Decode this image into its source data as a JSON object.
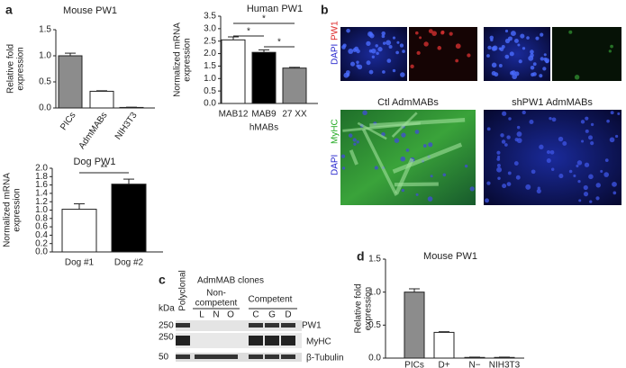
{
  "chart_data": [
    {
      "type": "bar",
      "title": "Mouse PW1",
      "ylabel": [
        "Relative fold",
        "expression"
      ],
      "categories": [
        "PICs",
        "AdmMABs",
        "NIH3T3"
      ],
      "values": [
        1.0,
        0.32,
        0.01
      ],
      "errors": [
        0.05,
        0.01,
        0.005
      ],
      "colors": [
        "#8c8c8c",
        "#ffffff",
        "#ffffff"
      ],
      "ylim": [
        0,
        1.5
      ],
      "yticks": [
        {
          "value": 0,
          "label": "0.0"
        },
        0.5,
        {
          "value": 1,
          "label": "1.0"
        },
        1.5
      ]
    },
    {
      "type": "bar",
      "title": "Human PW1",
      "ylabel": [
        "Normalized mRNA",
        "expression"
      ],
      "xlabel": "hMABs",
      "categories": [
        "MAB12",
        "MAB9",
        "27 XX"
      ],
      "values": [
        2.55,
        2.05,
        1.42
      ],
      "errors": [
        0.12,
        0.1,
        0.03
      ],
      "colors": [
        "#ffffff",
        "#000000",
        "#8c8c8c"
      ],
      "annotations": [
        "*",
        "*",
        "*"
      ],
      "ylim": [
        0,
        3.5
      ],
      "yticks": [
        {
          "value": 0,
          "label": "0.0"
        },
        0.5,
        {
          "value": 1,
          "label": "1.0"
        },
        1.5,
        {
          "value": 2,
          "label": "2.0"
        },
        2.5,
        {
          "value": 3,
          "label": "3.0"
        },
        3.5
      ]
    },
    {
      "type": "bar",
      "title": "Dog PW1",
      "ylabel": [
        "Normalized mRNA",
        "expression"
      ],
      "categories": [
        "Dog #1",
        "Dog #2"
      ],
      "values": [
        1.02,
        1.62
      ],
      "errors": [
        0.13,
        0.12
      ],
      "colors": [
        "#ffffff",
        "#000000"
      ],
      "annotations": [
        "**"
      ],
      "ylim": [
        0,
        2.0
      ],
      "yticks": [
        {
          "value": 0,
          "label": "0.0"
        },
        0.2,
        0.4,
        0.6,
        0.8,
        {
          "value": 1,
          "label": "1.0"
        },
        1.2,
        1.4,
        1.6,
        1.8,
        {
          "value": 2,
          "label": "2.0"
        }
      ]
    },
    {
      "type": "bar",
      "title": "Mouse PW1",
      "ylabel": [
        "Relative fold",
        "expression"
      ],
      "categories": [
        "PICs",
        "D+",
        "N−",
        "NIH3T3"
      ],
      "values": [
        1.0,
        0.39,
        0.01,
        0.01
      ],
      "errors": [
        0.05,
        0.01,
        0.005,
        0.005
      ],
      "colors": [
        "#8c8c8c",
        "#ffffff",
        "#ffffff",
        "#ffffff"
      ],
      "ylim": [
        0,
        1.5
      ],
      "yticks": [
        {
          "value": 0,
          "label": "0.0"
        },
        0.5,
        {
          "value": 1,
          "label": "1.0"
        },
        1.5
      ]
    }
  ],
  "figure": {
    "panel_labels": [
      "a",
      "b",
      "c",
      "d"
    ],
    "microscopy": {
      "row1_label": [
        "PW1",
        "DAPI"
      ],
      "row2_label": [
        "MyHC",
        "DAPI"
      ],
      "panel_titles": [
        "Ctl AdmMABs",
        "shPW1 AdmMABs"
      ]
    },
    "blot": {
      "title": "AdmMAB clones",
      "group1": [
        "Non-",
        "competent"
      ],
      "group2": "Competent",
      "first_lane": "Polyclonal",
      "lanes": [
        "L",
        "N",
        "O",
        "C",
        "G",
        "D"
      ],
      "unit": "kDa",
      "markers": [
        "250",
        "250",
        "50"
      ],
      "bands": [
        "PW1",
        "MyHC",
        "β-Tubulin"
      ]
    }
  }
}
